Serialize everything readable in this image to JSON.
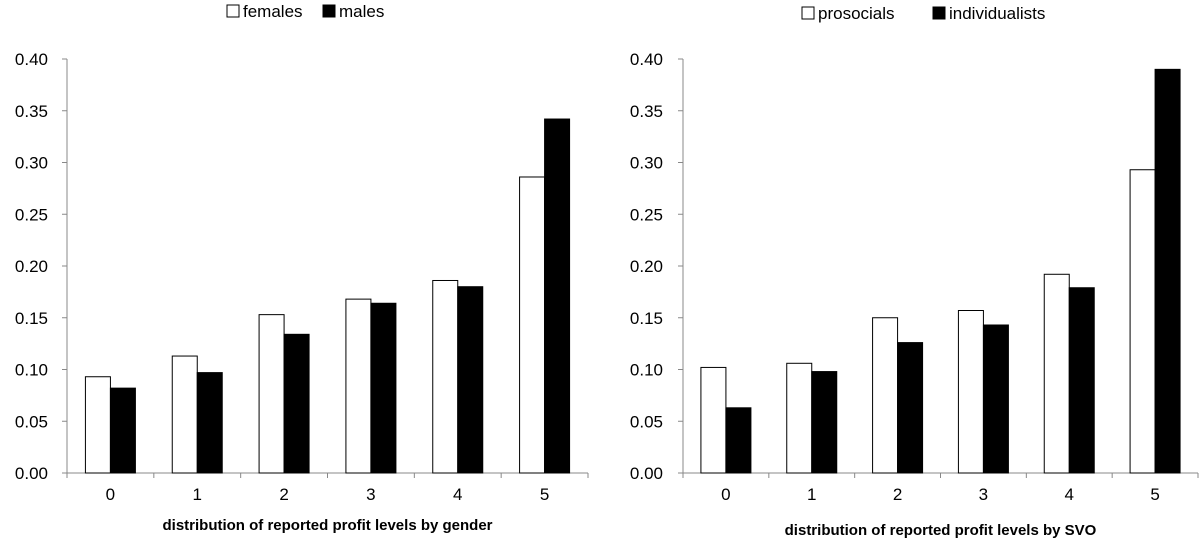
{
  "chart_data": [
    {
      "type": "bar",
      "title": "",
      "xlabel": "distribution of reported profit levels by gender",
      "ylabel": "",
      "categories": [
        "0",
        "1",
        "2",
        "3",
        "4",
        "5"
      ],
      "ylim": [
        0,
        0.4
      ],
      "yticks": [
        "0.00",
        "0.05",
        "0.10",
        "0.15",
        "0.20",
        "0.25",
        "0.30",
        "0.35",
        "0.40"
      ],
      "grid": false,
      "legend_position": "top",
      "series": [
        {
          "name": "females",
          "fill": "#ffffff",
          "values": [
            0.093,
            0.113,
            0.153,
            0.168,
            0.186,
            0.286
          ]
        },
        {
          "name": "males",
          "fill": "#000000",
          "values": [
            0.082,
            0.097,
            0.134,
            0.164,
            0.18,
            0.342
          ]
        }
      ]
    },
    {
      "type": "bar",
      "title": "",
      "xlabel": "distribution of reported profit levels by SVO",
      "ylabel": "",
      "categories": [
        "0",
        "1",
        "2",
        "3",
        "4",
        "5"
      ],
      "ylim": [
        0,
        0.4
      ],
      "yticks": [
        "0.00",
        "0.05",
        "0.10",
        "0.15",
        "0.20",
        "0.25",
        "0.30",
        "0.35",
        "0.40"
      ],
      "grid": false,
      "legend_position": "top",
      "series": [
        {
          "name": "prosocials",
          "fill": "#ffffff",
          "values": [
            0.102,
            0.106,
            0.15,
            0.157,
            0.192,
            0.293
          ]
        },
        {
          "name": "individualists",
          "fill": "#000000",
          "values": [
            0.063,
            0.098,
            0.126,
            0.143,
            0.179,
            0.39
          ]
        }
      ]
    }
  ]
}
